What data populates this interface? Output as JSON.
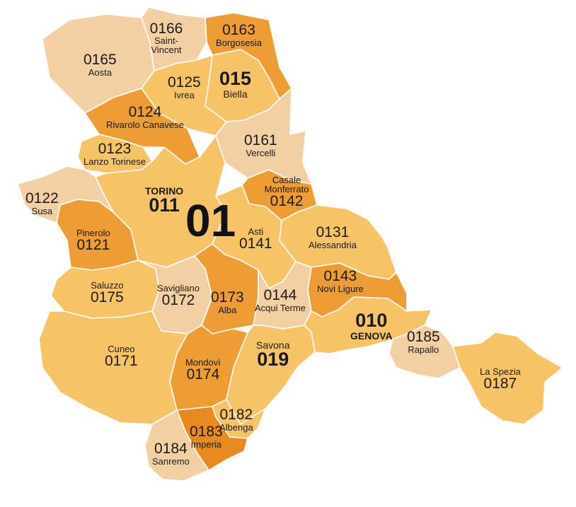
{
  "macro_code": "01",
  "colors": {
    "light": "#f2d0a4",
    "medium": "#f6c466",
    "dark": "#ee9c34",
    "deep": "#e88a1e",
    "border": "#ffffff"
  },
  "areas": [
    {
      "id": "0165",
      "code": "0165",
      "name": "Aosta",
      "shade": "light"
    },
    {
      "id": "0166",
      "code": "0166",
      "name": "Saint-Vincent",
      "shade": "light"
    },
    {
      "id": "0163",
      "code": "0163",
      "name": "Borgosesia",
      "shade": "dark"
    },
    {
      "id": "0125",
      "code": "0125",
      "name": "Ivrea",
      "shade": "medium"
    },
    {
      "id": "015",
      "code": "015",
      "name": "Biella",
      "shade": "medium"
    },
    {
      "id": "0124",
      "code": "0124",
      "name": "Rivarolo Canavese",
      "shade": "dark"
    },
    {
      "id": "0161",
      "code": "0161",
      "name": "Vercelli",
      "shade": "light"
    },
    {
      "id": "0123",
      "code": "0123",
      "name": "Lanzo Torinese",
      "shade": "medium"
    },
    {
      "id": "011",
      "code": "011",
      "name": "TORINO",
      "shade": "medium"
    },
    {
      "id": "0142",
      "code": "0142",
      "name": "Casale Monferrato",
      "shade": "dark"
    },
    {
      "id": "0122",
      "code": "0122",
      "name": "Susa",
      "shade": "light"
    },
    {
      "id": "0121",
      "code": "0121",
      "name": "Pinerolo",
      "shade": "dark"
    },
    {
      "id": "0141",
      "code": "0141",
      "name": "Asti",
      "shade": "medium"
    },
    {
      "id": "0131",
      "code": "0131",
      "name": "Alessandria",
      "shade": "medium"
    },
    {
      "id": "0175",
      "code": "0175",
      "name": "Saluzzo",
      "shade": "medium"
    },
    {
      "id": "0172",
      "code": "0172",
      "name": "Savigliano",
      "shade": "light"
    },
    {
      "id": "0173",
      "code": "0173",
      "name": "Alba",
      "shade": "dark"
    },
    {
      "id": "0144",
      "code": "0144",
      "name": "Acqui Terme",
      "shade": "light"
    },
    {
      "id": "0143",
      "code": "0143",
      "name": "Novi Ligure",
      "shade": "dark"
    },
    {
      "id": "010",
      "code": "010",
      "name": "GENOVA",
      "shade": "medium"
    },
    {
      "id": "0171",
      "code": "0171",
      "name": "Cuneo",
      "shade": "medium"
    },
    {
      "id": "0174",
      "code": "0174",
      "name": "Mondovì",
      "shade": "dark"
    },
    {
      "id": "019",
      "code": "019",
      "name": "Savona",
      "shade": "medium"
    },
    {
      "id": "0185",
      "code": "0185",
      "name": "Rapallo",
      "shade": "light"
    },
    {
      "id": "0187",
      "code": "0187",
      "name": "La Spezia",
      "shade": "medium"
    },
    {
      "id": "0182",
      "code": "0182",
      "name": "Albenga",
      "shade": "medium"
    },
    {
      "id": "0183",
      "code": "0183",
      "name": "Imperia",
      "shade": "deep"
    },
    {
      "id": "0184",
      "code": "0184",
      "name": "Sanremo",
      "shade": "light"
    }
  ]
}
